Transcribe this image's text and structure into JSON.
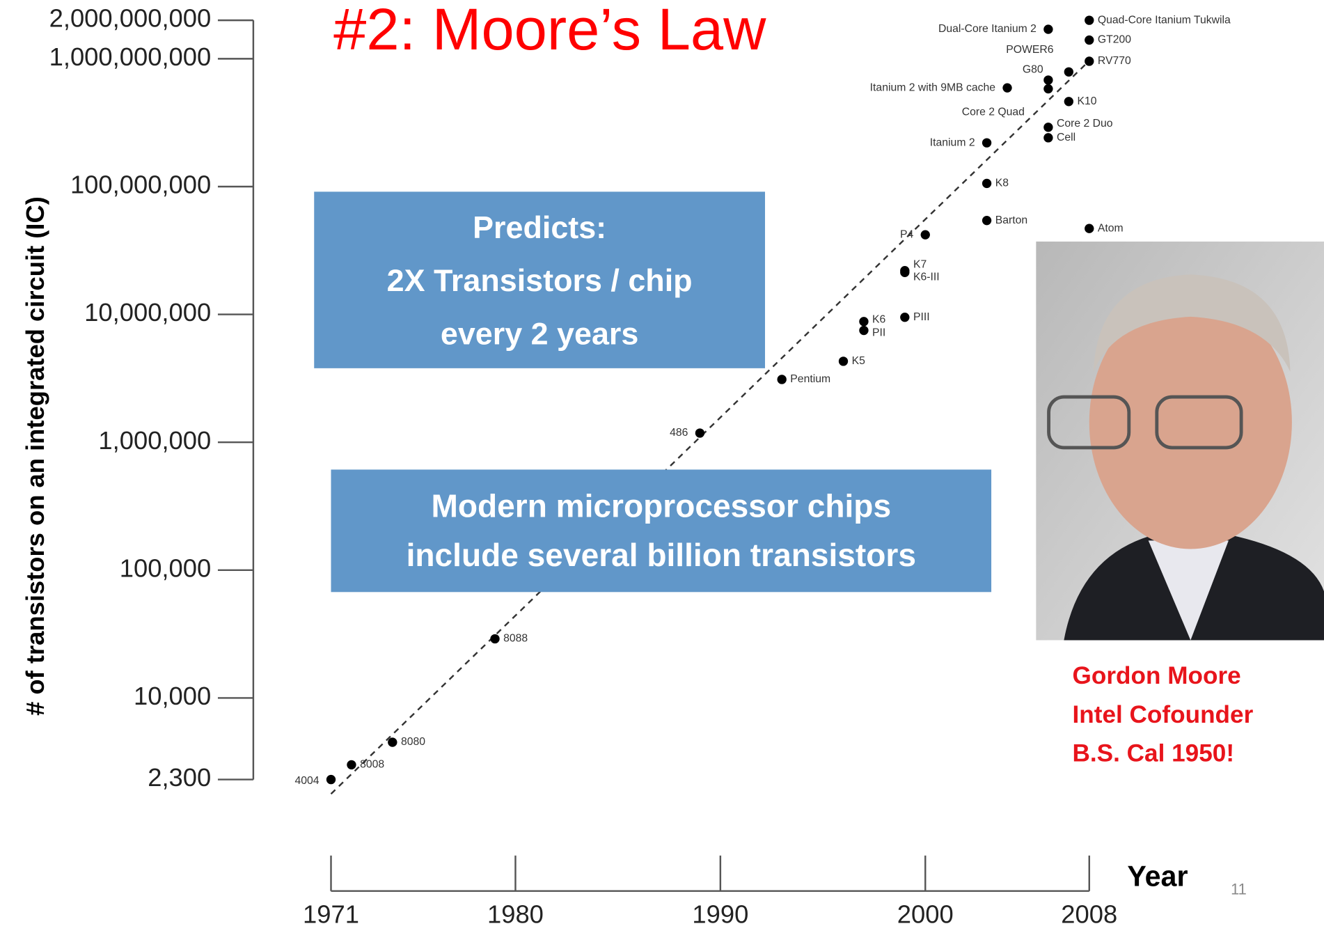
{
  "title": "#2: Moore’s Law",
  "chart_data": {
    "type": "scatter",
    "y_label": "# of transistors on an  integrated circuit (IC)",
    "x_label": "Year",
    "log_y": true,
    "color": "#000000",
    "xlim": [
      1971,
      2008
    ],
    "xticks": [
      1971,
      1980,
      1990,
      2000,
      2008
    ],
    "ylim": [
      2300,
      2000000000
    ],
    "yticks": [
      {
        "value": 2300,
        "label": "2,300"
      },
      {
        "value": 10000,
        "label": "10,000"
      },
      {
        "value": 100000,
        "label": "100,000"
      },
      {
        "value": 1000000,
        "label": "1,000,000"
      },
      {
        "value": 10000000,
        "label": "10,000,000"
      },
      {
        "value": 100000000,
        "label": "100,000,000"
      },
      {
        "value": 1000000000,
        "label": "1,000,000,000"
      },
      {
        "value": 2000000000,
        "label": "2,000,000,000"
      }
    ],
    "labels": [
      "4004",
      "8008",
      "8080",
      "8088",
      "486",
      "Pentium",
      "K5",
      "K6",
      "PII",
      "PIII",
      "K7",
      "K6-III",
      "P4",
      "Barton",
      "K8",
      "Itanium 2",
      "Itanium 2 with 9MB cache",
      "Cell",
      "Core 2 Duo",
      "Core 2 Quad",
      "G80",
      "POWER6",
      "Dual-Core Itanium 2",
      "K10",
      "Atom",
      "RV770",
      "GT200",
      "Quad-Core Itanium Tukwila"
    ],
    "x": [
      1971,
      1972,
      1974,
      1979,
      1989,
      1993,
      1996,
      1997,
      1997,
      1999,
      1999,
      1999,
      2000,
      2003,
      2003,
      2003,
      2004,
      2006,
      2006,
      2006,
      2006,
      2007,
      2006,
      2007,
      2008,
      2008,
      2008,
      2008
    ],
    "values": [
      2300,
      3000,
      4500,
      29000,
      1180000,
      3100000,
      4300000,
      8800000,
      7500000,
      9500000,
      22000000,
      21300000,
      42000000,
      54300000,
      105900000,
      220000000,
      592000000,
      241000000,
      291000000,
      582000000,
      681000000,
      789000000,
      1700000000,
      463000000,
      47000000,
      956000000,
      1400000000,
      2000000000
    ]
  },
  "callouts": [
    [
      "Predicts:",
      "2X Transistors / chip",
      "every 2 years"
    ],
    [
      "Modern microprocessor chips",
      "include several billion transistors"
    ]
  ],
  "caption": [
    "Gordon Moore",
    "Intel Cofounder",
    "B.S. Cal 1950!"
  ],
  "page_number": "11"
}
